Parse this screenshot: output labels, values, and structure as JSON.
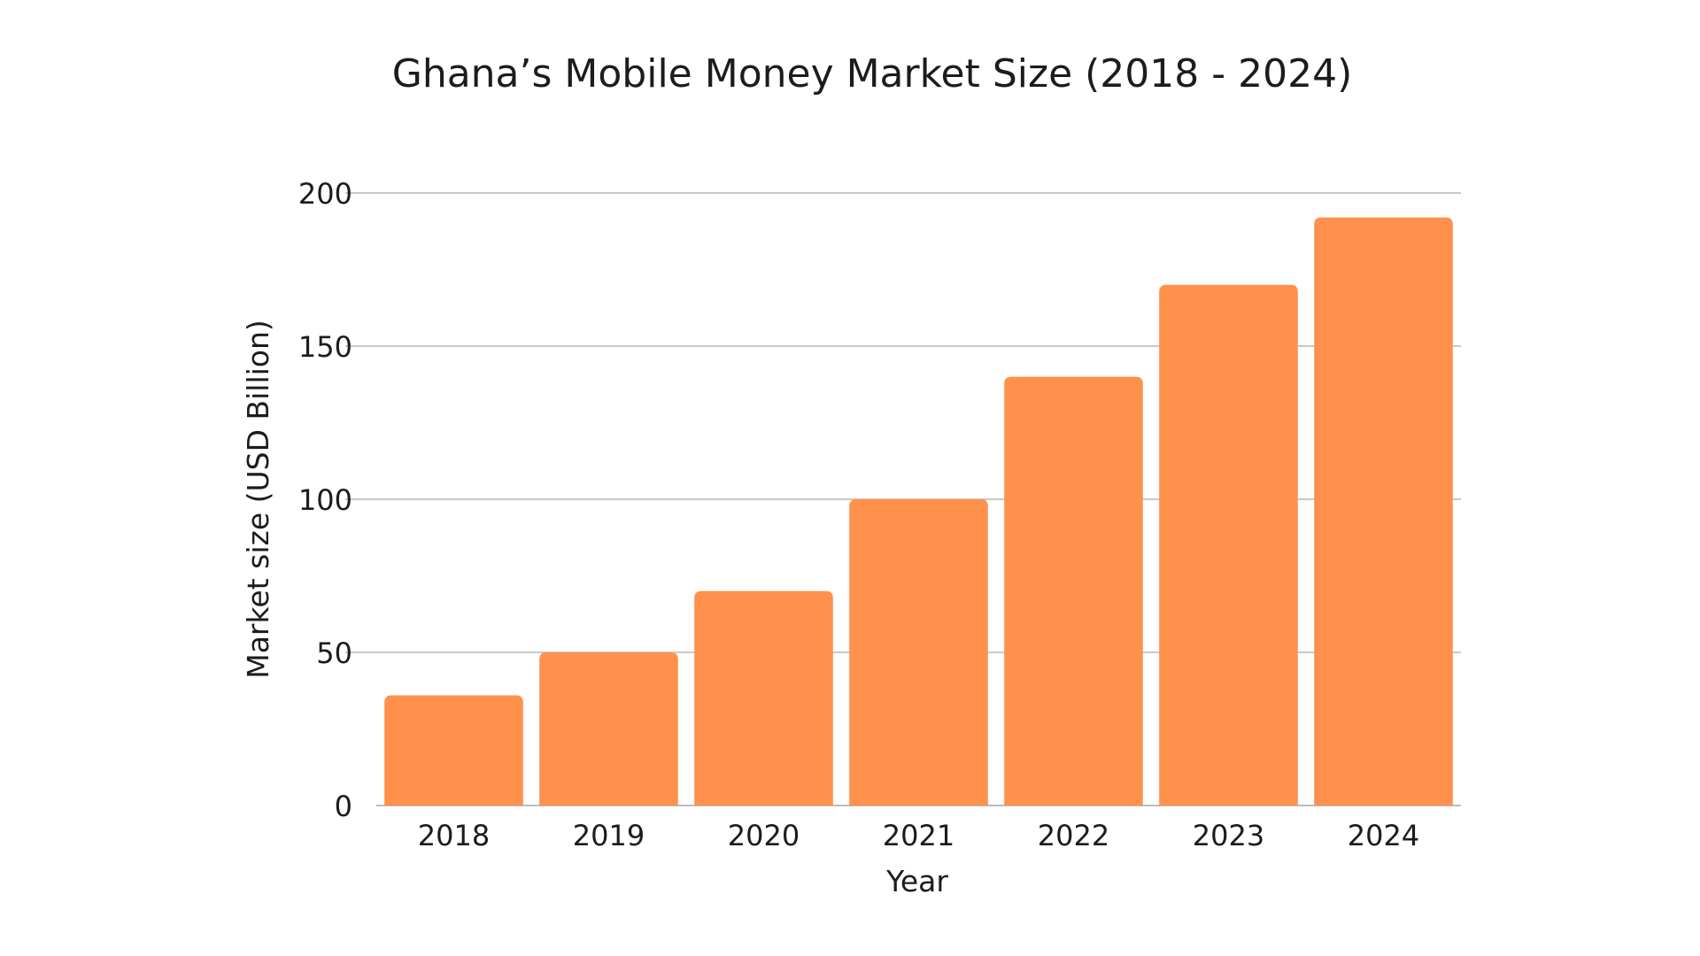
{
  "chart_data": {
    "type": "bar",
    "title": "Ghana’s Mobile Money Market Size (2018 - 2024)",
    "xlabel": "Year",
    "ylabel": "Market size (USD Billion)",
    "categories": [
      "2018",
      "2019",
      "2020",
      "2021",
      "2022",
      "2023",
      "2024"
    ],
    "values": [
      36,
      50,
      70,
      100,
      140,
      170,
      192
    ],
    "ylim": [
      0,
      200
    ],
    "yticks": [
      0,
      50,
      100,
      150,
      200
    ],
    "grid": true,
    "legend": "none",
    "bar_color": "#ff914d"
  }
}
